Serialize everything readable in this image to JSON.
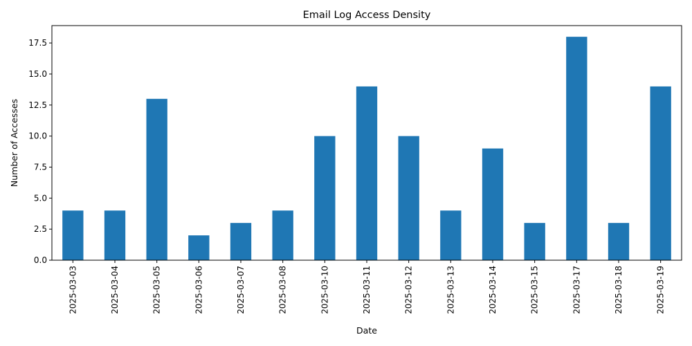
{
  "chart_data": {
    "type": "bar",
    "title": "Email Log Access Density",
    "xlabel": "Date",
    "ylabel": "Number of Accesses",
    "categories": [
      "2025-03-03",
      "2025-03-04",
      "2025-03-05",
      "2025-03-06",
      "2025-03-07",
      "2025-03-08",
      "2025-03-10",
      "2025-03-11",
      "2025-03-12",
      "2025-03-13",
      "2025-03-14",
      "2025-03-15",
      "2025-03-17",
      "2025-03-18",
      "2025-03-19"
    ],
    "values": [
      4,
      4,
      13,
      2,
      3,
      4,
      10,
      14,
      10,
      4,
      9,
      3,
      18,
      3,
      14
    ],
    "ylim": [
      0,
      18.9
    ],
    "yticks": [
      "0.0",
      "2.5",
      "5.0",
      "7.5",
      "10.0",
      "12.5",
      "15.0",
      "17.5"
    ],
    "bar_color": "#1f77b4",
    "grid": false,
    "legend": false
  }
}
